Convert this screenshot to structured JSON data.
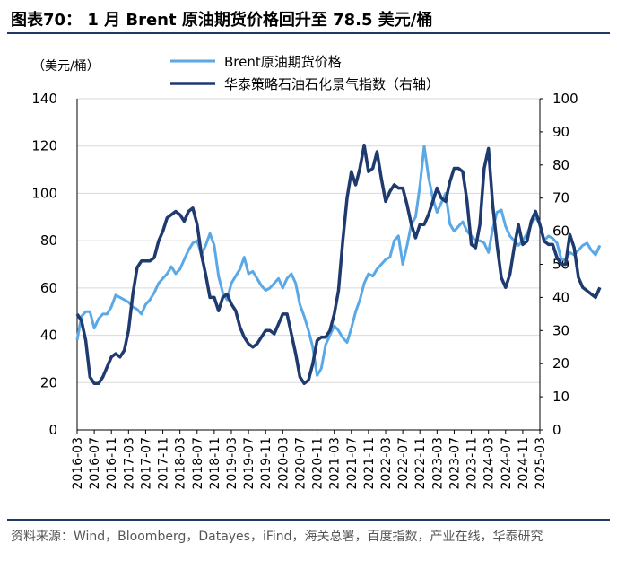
{
  "header": {
    "title": "图表70： 1 月 Brent 原油期货价格回升至 78.5 美元/桶"
  },
  "footer": {
    "source": "资料来源：Wind，Bloomberg，Datayes，iFind，海关总署，百度指数，产业在线，华泰研究"
  },
  "chart_data": {
    "type": "line",
    "left_unit": "（美元/桶）",
    "colors": {
      "brent": "#5aa9e6",
      "index": "#1f3a6e"
    },
    "left_ylim": [
      0,
      140
    ],
    "left_ticks": [
      0,
      20,
      40,
      60,
      80,
      100,
      120,
      140
    ],
    "right_ylim": [
      0,
      100
    ],
    "right_ticks": [
      0,
      10,
      20,
      30,
      40,
      50,
      60,
      70,
      80,
      90,
      100
    ],
    "x_ticks": [
      "2016-03",
      "2016-07",
      "2016-11",
      "2017-03",
      "2017-07",
      "2017-11",
      "2018-03",
      "2018-07",
      "2018-11",
      "2019-03",
      "2019-07",
      "2019-11",
      "2020-03",
      "2020-07",
      "2020-11",
      "2021-03",
      "2021-07",
      "2021-11",
      "2022-03",
      "2022-07",
      "2022-11",
      "2023-03",
      "2023-07",
      "2023-11",
      "2024-03",
      "2024-07",
      "2024-11",
      "2025-03"
    ],
    "x_start": "2016-03",
    "x_end": "2025-03",
    "series": [
      {
        "name": "Brent原油期货价格",
        "axis": "left",
        "values": [
          38,
          48,
          50,
          50,
          43,
          47,
          49,
          49,
          52,
          57,
          56,
          55,
          54,
          52,
          51,
          49,
          53,
          55,
          58,
          62,
          64,
          66,
          69,
          66,
          68,
          72,
          76,
          79,
          80,
          74,
          78,
          83,
          78,
          65,
          58,
          55,
          62,
          65,
          68,
          73,
          66,
          67,
          64,
          61,
          59,
          60,
          62,
          64,
          60,
          64,
          66,
          62,
          53,
          48,
          42,
          35,
          23,
          26,
          36,
          40,
          44,
          42,
          39,
          37,
          43,
          50,
          55,
          62,
          66,
          65,
          68,
          70,
          72,
          73,
          80,
          82,
          70,
          78,
          87,
          90,
          103,
          120,
          107,
          98,
          92,
          96,
          100,
          87,
          84,
          86,
          88,
          84,
          82,
          80,
          80,
          79,
          75,
          85,
          92,
          93,
          86,
          82,
          80,
          78,
          80,
          83,
          87,
          90,
          87,
          80,
          82,
          81,
          79,
          72,
          72,
          75,
          74,
          76,
          78,
          79,
          76,
          74,
          78
        ]
      },
      {
        "name": "华泰策略石油石化景气指数（右轴）",
        "axis": "right",
        "values": [
          35,
          33,
          27,
          16,
          14,
          14,
          16,
          19,
          22,
          23,
          22,
          24,
          30,
          41,
          49,
          51,
          51,
          51,
          52,
          57,
          60,
          64,
          65,
          66,
          65,
          63,
          66,
          67,
          62,
          53,
          47,
          40,
          40,
          36,
          40,
          41,
          38,
          36,
          31,
          28,
          26,
          25,
          26,
          28,
          30,
          30,
          29,
          32,
          35,
          35,
          29,
          23,
          16,
          14,
          15,
          20,
          27,
          28,
          28,
          30,
          35,
          42,
          57,
          70,
          78,
          74,
          79,
          86,
          78,
          79,
          84,
          76,
          69,
          72,
          74,
          73,
          73,
          68,
          62,
          58,
          62,
          62,
          65,
          69,
          73,
          70,
          69,
          75,
          79,
          79,
          78,
          69,
          56,
          55,
          62,
          79,
          85,
          68,
          56,
          46,
          43,
          47,
          55,
          62,
          56,
          57,
          63,
          66,
          62,
          57,
          56,
          56,
          52,
          50,
          50,
          59,
          55,
          46,
          43,
          42,
          41,
          40,
          43
        ]
      }
    ]
  }
}
